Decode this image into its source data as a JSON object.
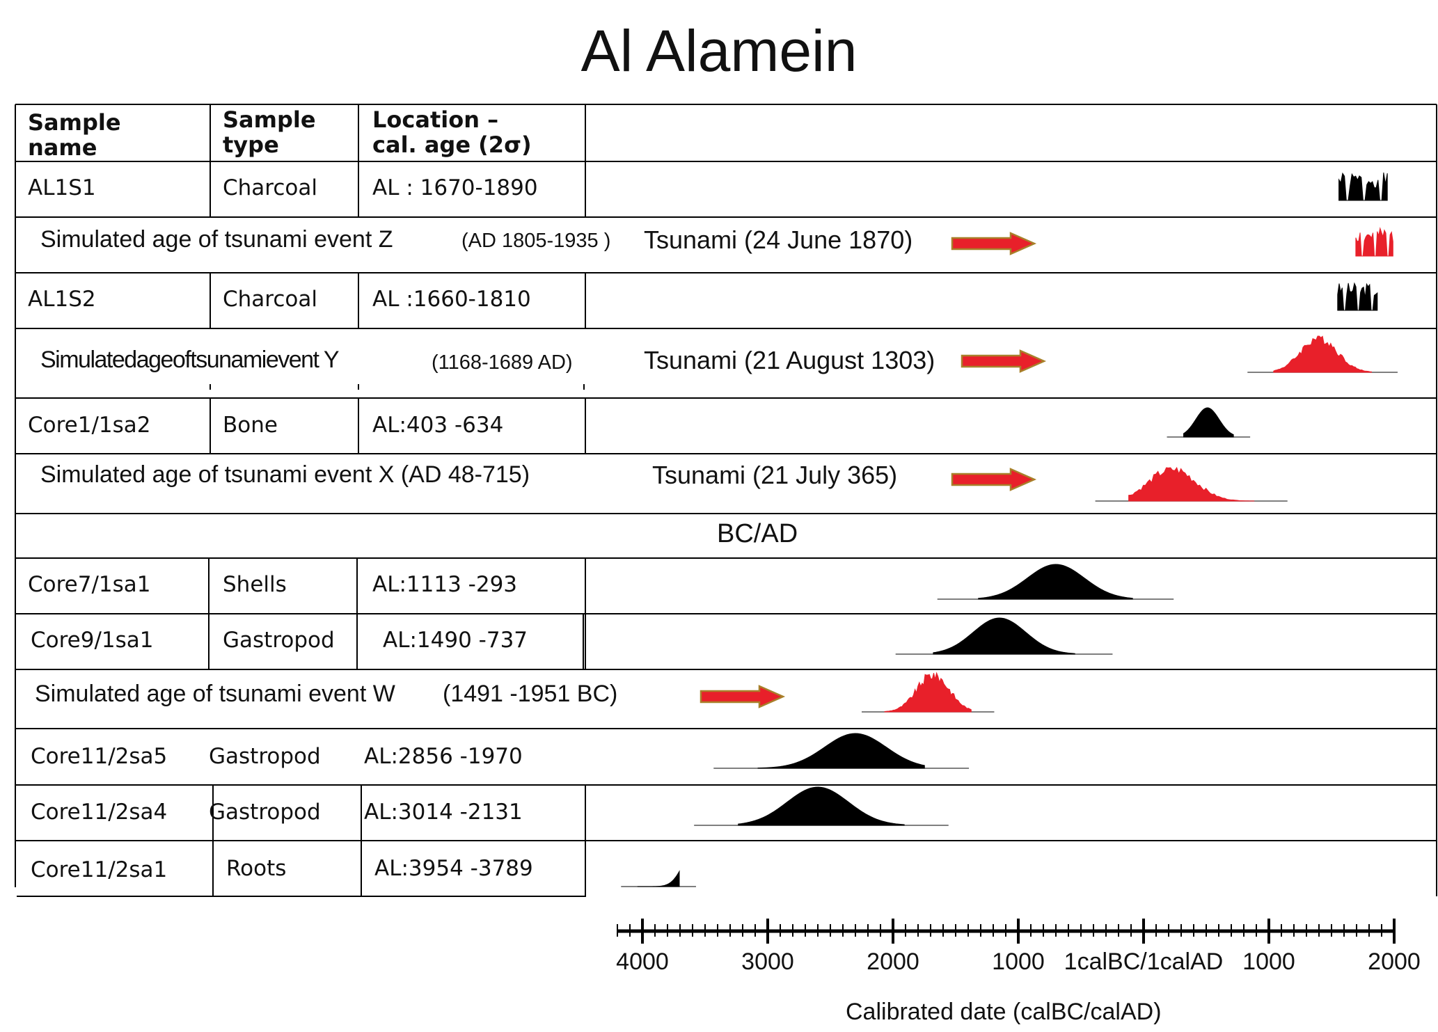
{
  "title": "Al Alamein",
  "table": {
    "headers": {
      "name_line1": "Sample",
      "name_line2": "name",
      "type_line1": "Sample",
      "type_line2": "type",
      "loc_line1": "Location –",
      "loc_line2": "cal. age (2σ)"
    },
    "rows": [
      {
        "kind": "sample",
        "name": "AL1S1",
        "type": "Charcoal",
        "age": "AL : 1670-1890"
      },
      {
        "kind": "event",
        "label": "Simulated age of tsunami event Z",
        "range": "(AD 1805-1935 )",
        "tsunami": "Tsunami (24 June 1870)"
      },
      {
        "kind": "sample",
        "name": "AL1S2",
        "type": "Charcoal",
        "age": "AL :1660-1810"
      },
      {
        "kind": "event",
        "label": "Simulatedageoftsunamievent Y",
        "range": "(1168-1689 AD)",
        "tsunami": "Tsunami (21 August 1303)"
      },
      {
        "kind": "sample",
        "name": "Core1/1sa2",
        "type": "Bone",
        "age": "AL:403 -634"
      },
      {
        "kind": "event",
        "label": "Simulated age of tsunami event X (AD 48-715)",
        "range": "",
        "tsunami": "Tsunami (21 July 365)"
      },
      {
        "kind": "divider",
        "label": "BC/AD"
      },
      {
        "kind": "sample",
        "name": "Core7/1sa1",
        "type": "Shells",
        "age": "AL:1113 -293"
      },
      {
        "kind": "sample",
        "name": "Core9/1sa1",
        "type": "Gastropod",
        "age": "AL:1490 -737"
      },
      {
        "kind": "event",
        "label": "Simulated age of tsunami event W",
        "range": "(1491 -1951 BC)",
        "tsunami": ""
      },
      {
        "kind": "sample",
        "name": "Core11/2sa5",
        "type": "Gastropod",
        "age": "AL:2856 -1970"
      },
      {
        "kind": "sample",
        "name": "Core11/2sa4",
        "type": "Gastropod",
        "age": "AL:3014 -2131"
      },
      {
        "kind": "sample",
        "name": "Core11/2sa1",
        "type": "Roots",
        "age": "AL:3954 -3789"
      }
    ]
  },
  "colors": {
    "sample_fill": "#000000",
    "event_fill": "#e8202a",
    "arrow_fill": "#e8202a",
    "arrow_stroke": "#a8802a",
    "line": "#000000"
  },
  "chart_data": {
    "type": "area",
    "xlabel": "Calibrated date (calBC/calAD)",
    "x_ticks": [
      -4000,
      -3000,
      -2000,
      -1000,
      0,
      1000,
      2000
    ],
    "x_tick_labels": [
      "4000",
      "3000",
      "2000",
      "1000",
      "1calBC/1calAD",
      "1000",
      "2000"
    ],
    "xlim": [
      -4200,
      2050
    ],
    "series": [
      {
        "name": "AL1S1",
        "kind": "sample",
        "range": [
          1670,
          1890
        ],
        "shape": "spiky"
      },
      {
        "name": "Simulated age of tsunami event Z",
        "kind": "event",
        "range": [
          1805,
          1935
        ],
        "shape": "spiky"
      },
      {
        "name": "AL1S2",
        "kind": "sample",
        "range": [
          1660,
          1810
        ],
        "shape": "spiky"
      },
      {
        "name": "Simulated age of tsunami event Y",
        "kind": "event",
        "range": [
          1168,
          1689
        ],
        "peak": 1400
      },
      {
        "name": "Core1/1sa2",
        "kind": "sample",
        "range": [
          403,
          634
        ],
        "peak": 510
      },
      {
        "name": "Simulated age of tsunami event X",
        "kind": "event",
        "range": [
          48,
          715
        ],
        "peak": 230
      },
      {
        "name": "Core7/1sa1",
        "kind": "sample",
        "range": [
          -1113,
          -293
        ],
        "peak": -700
      },
      {
        "name": "Core9/1sa1",
        "kind": "sample",
        "range": [
          -1490,
          -737
        ],
        "peak": -1150
      },
      {
        "name": "Simulated age of tsunami event W",
        "kind": "event",
        "range": [
          -1951,
          -1491
        ],
        "peak": -1680
      },
      {
        "name": "Core11/2sa5",
        "kind": "sample",
        "range": [
          -2856,
          -1970
        ],
        "peak": -2300
      },
      {
        "name": "Core11/2sa4",
        "kind": "sample",
        "range": [
          -3014,
          -2131
        ],
        "peak": -2600
      },
      {
        "name": "Core11/2sa1",
        "kind": "sample",
        "range": [
          -3954,
          -3789
        ],
        "peak": -3580
      }
    ]
  }
}
